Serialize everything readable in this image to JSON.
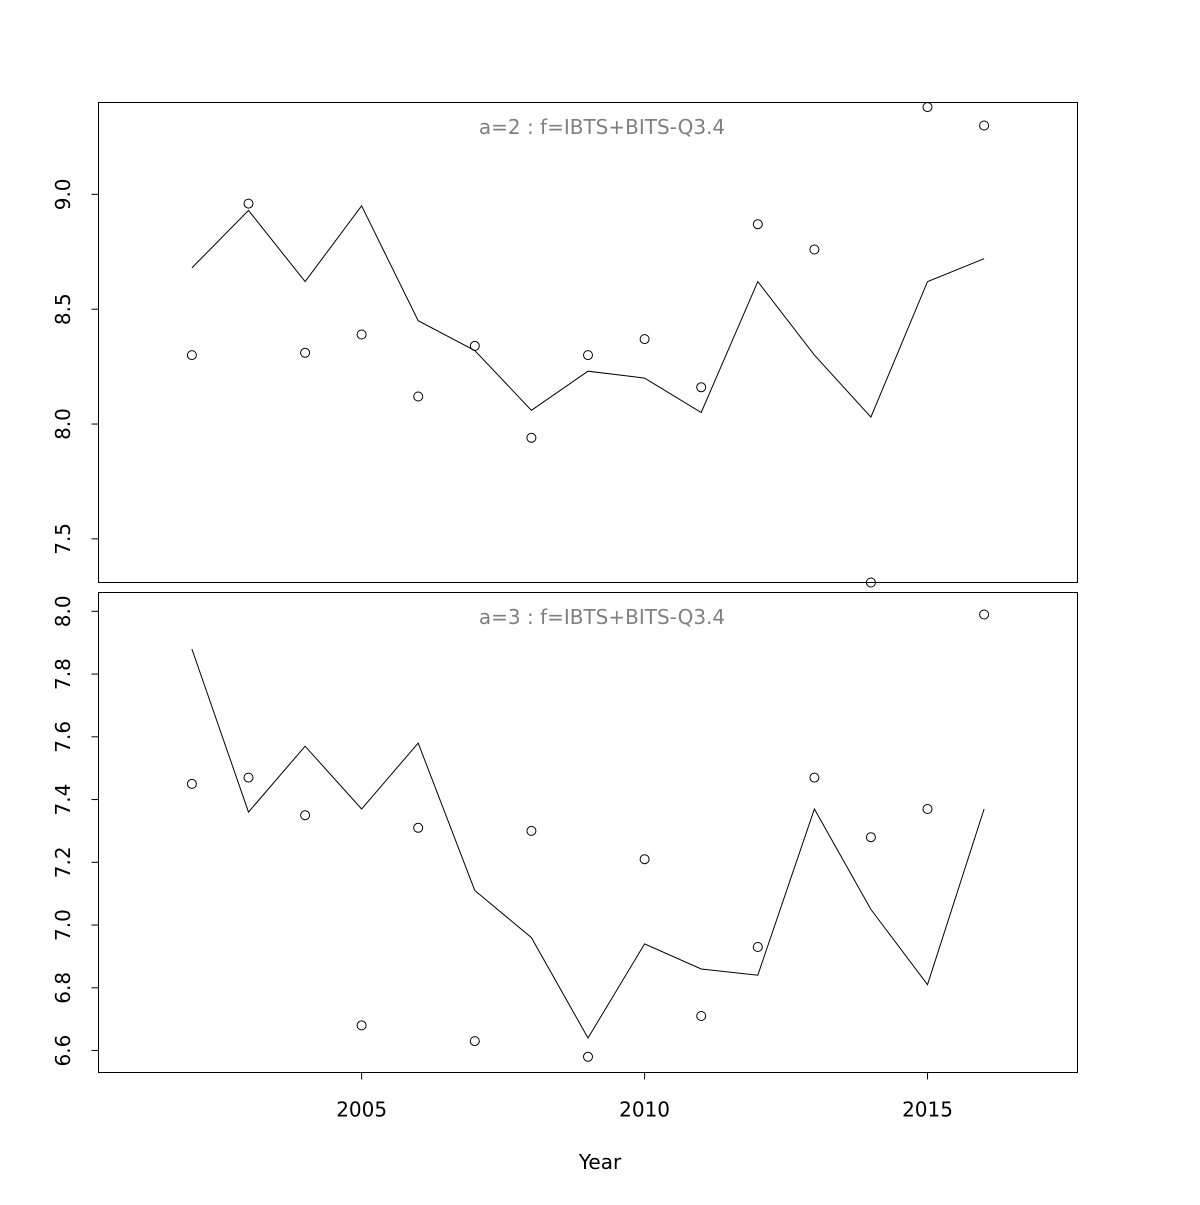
{
  "chart_data": {
    "type": "line",
    "xlabel": "Year",
    "x_ticks": [
      2005,
      2010,
      2015
    ],
    "xlim": [
      2000.35,
      2017.65
    ],
    "panels": [
      {
        "title": "a=2  :  f=IBTS+BITS-Q3.4",
        "ylim": [
          7.31,
          9.4
        ],
        "y_ticks": [
          "7.5",
          "8.0",
          "8.5",
          "9.0"
        ],
        "x": [
          2002,
          2003,
          2004,
          2005,
          2006,
          2007,
          2008,
          2009,
          2010,
          2011,
          2012,
          2013,
          2014,
          2015,
          2016
        ],
        "observed": [
          8.3,
          8.96,
          8.31,
          8.39,
          8.12,
          8.34,
          7.94,
          8.3,
          8.37,
          8.16,
          8.87,
          8.76,
          7.31,
          9.38,
          9.3
        ],
        "fitted": [
          8.68,
          8.93,
          8.62,
          8.95,
          8.45,
          8.32,
          8.06,
          8.23,
          8.2,
          8.05,
          8.62,
          8.3,
          8.03,
          8.62,
          8.72
        ]
      },
      {
        "title": "a=3  :  f=IBTS+BITS-Q3.4",
        "ylim": [
          6.53,
          8.06
        ],
        "y_ticks": [
          "6.6",
          "6.8",
          "7.0",
          "7.2",
          "7.4",
          "7.6",
          "7.8",
          "8.0"
        ],
        "x": [
          2002,
          2003,
          2004,
          2005,
          2006,
          2007,
          2008,
          2009,
          2010,
          2011,
          2012,
          2013,
          2014,
          2015,
          2016
        ],
        "observed": [
          7.45,
          7.47,
          7.35,
          6.68,
          7.31,
          6.63,
          7.3,
          6.58,
          7.21,
          6.71,
          6.93,
          7.47,
          7.28,
          7.37,
          7.99
        ],
        "fitted": [
          7.88,
          7.36,
          7.57,
          7.37,
          7.58,
          7.11,
          6.96,
          6.64,
          6.94,
          6.86,
          6.84,
          7.37,
          7.05,
          6.81,
          7.37
        ]
      }
    ]
  }
}
